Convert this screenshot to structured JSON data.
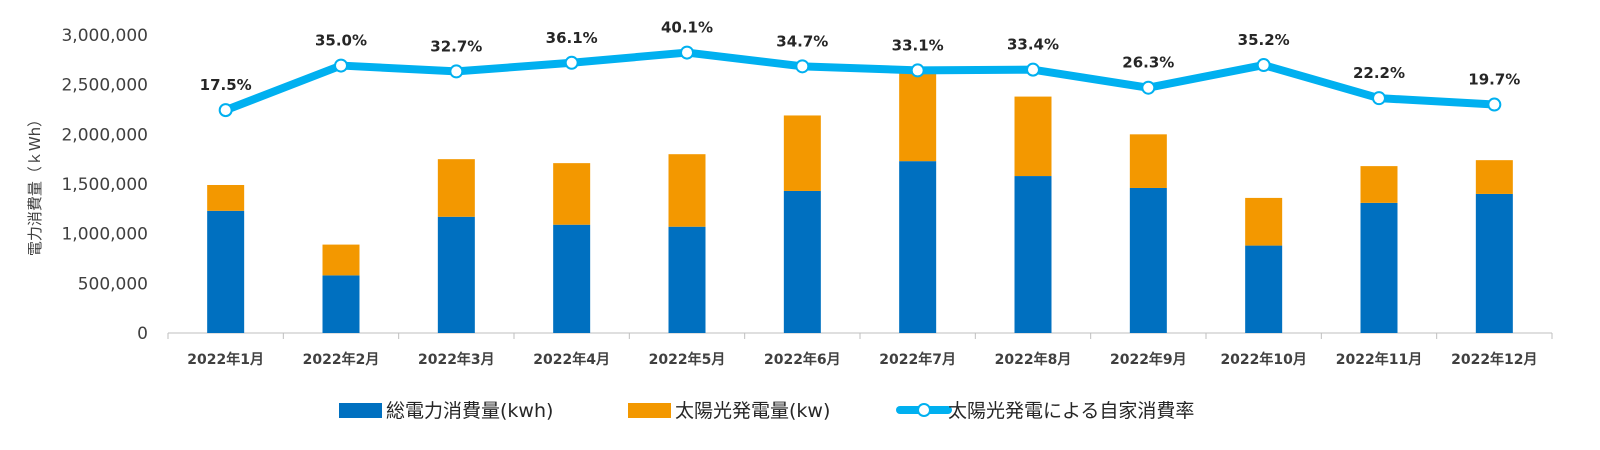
{
  "chart_data": {
    "type": "bar",
    "stacked": true,
    "categories": [
      "2022年1月",
      "2022年2月",
      "2022年3月",
      "2022年4月",
      "2022年5月",
      "2022年6月",
      "2022年7月",
      "2022年8月",
      "2022年9月",
      "2022年10月",
      "2022年11月",
      "2022年12月"
    ],
    "ylabel": "電力消費量（ｋWh）",
    "ylim": [
      0,
      3000000
    ],
    "yticks": [
      0,
      500000,
      1000000,
      1500000,
      2000000,
      2500000,
      3000000
    ],
    "ytick_labels": [
      "0",
      "500,000",
      "1,000,000",
      "1,500,000",
      "2,000,000",
      "2,500,000",
      "3,000,000"
    ],
    "grid": false,
    "legend_position": "bottom",
    "series": [
      {
        "name": "総電力消費量(kwh)",
        "type": "bar",
        "color": "#0070c0",
        "values": [
          1230000,
          580000,
          1170000,
          1090000,
          1070000,
          1430000,
          1730000,
          1580000,
          1460000,
          880000,
          1310000,
          1400000
        ]
      },
      {
        "name": "太陽光発電量(kw)",
        "type": "bar",
        "color": "#f39800",
        "values": [
          260000,
          310000,
          580000,
          620000,
          730000,
          760000,
          910000,
          800000,
          540000,
          480000,
          370000,
          340000
        ]
      },
      {
        "name": "太陽光発電による自家消費率",
        "type": "line",
        "color": "#00b0f0",
        "values": [
          17.5,
          35.0,
          32.7,
          36.1,
          40.1,
          34.7,
          33.1,
          33.4,
          26.3,
          35.2,
          22.2,
          19.7
        ],
        "labels": [
          "17.5%",
          "35.0%",
          "32.7%",
          "36.1%",
          "40.1%",
          "34.7%",
          "33.1%",
          "33.4%",
          "26.3%",
          "35.2%",
          "22.2%",
          "19.7%"
        ],
        "secondary_ylim": [
          -70,
          47
        ]
      }
    ]
  }
}
